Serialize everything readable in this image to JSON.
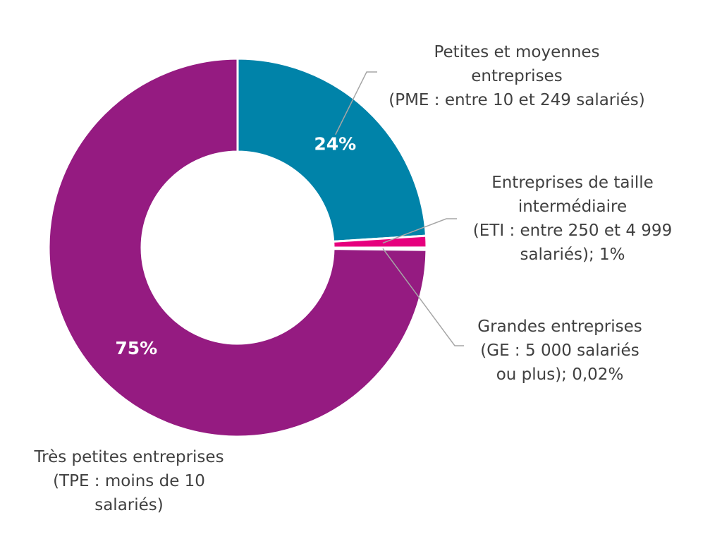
{
  "chart_data": {
    "type": "pie",
    "donut": true,
    "categories": [
      "Petites et moyennes entreprises (PME : entre 10 et 249 salariés)",
      "Entreprises de taille intermédiaire (ETI : entre 250 et 4 999 salariés)",
      "Grandes entreprises (GE : 5 000 salariés ou plus)",
      "Très petites entreprises (TPE : moins de 10 salariés)"
    ],
    "values": [
      24,
      1,
      0.02,
      75
    ],
    "colors": [
      "#0083a9",
      "#e6007e",
      "#bfbfbf",
      "#951b81"
    ],
    "data_labels": [
      "24%",
      "",
      "",
      "75%"
    ],
    "labels": [
      {
        "lines": [
          "Petites et moyennes",
          "entreprises",
          "(PME : entre 10 et 249 salariés)"
        ]
      },
      {
        "lines": [
          "Entreprises de taille",
          "intermédiaire",
          "(ETI : entre 250 et 4 999",
          "salariés); 1%"
        ]
      },
      {
        "lines": [
          "Grandes entreprises",
          "(GE : 5 000 salariés",
          "ou plus); 0,02%"
        ]
      },
      {
        "lines": [
          "Très petites entreprises",
          "(TPE : moins de 10",
          "salariés)"
        ]
      }
    ]
  }
}
